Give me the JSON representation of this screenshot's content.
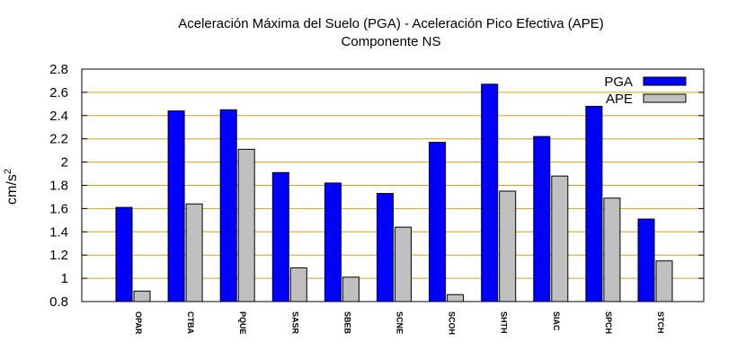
{
  "chart_data": {
    "type": "bar",
    "title": "Aceleración Máxima del Suelo (PGA) -  Aceleración Pico Efectiva (APE)",
    "subtitle": "Componente NS",
    "ylabel": "cm/s",
    "ylabel_superscript": "2",
    "xlabel": "",
    "ylim": [
      0.8,
      2.8
    ],
    "yticks": [
      "0.8",
      "1",
      "1.2",
      "1.4",
      "1.6",
      "1.8",
      "2",
      "2.2",
      "2.4",
      "2.6",
      "2.8"
    ],
    "grid": true,
    "legend_position": "top-right",
    "categories": [
      "OPAR",
      "CTBA",
      "PQUE",
      "SASR",
      "SBEB",
      "SCNE",
      "SCOH",
      "SHTH",
      "SIAC",
      "SPCH",
      "STCH"
    ],
    "series": [
      {
        "name": "PGA",
        "color": "#0000ff",
        "values": [
          1.61,
          2.44,
          2.45,
          1.91,
          1.82,
          1.73,
          2.17,
          2.67,
          2.22,
          2.48,
          1.51
        ]
      },
      {
        "name": "APE",
        "color": "#c0c0c0",
        "values": [
          0.89,
          1.64,
          2.11,
          1.09,
          1.01,
          1.44,
          0.86,
          1.75,
          1.88,
          1.69,
          1.15
        ]
      }
    ],
    "gridline_color": "#d4a017"
  }
}
